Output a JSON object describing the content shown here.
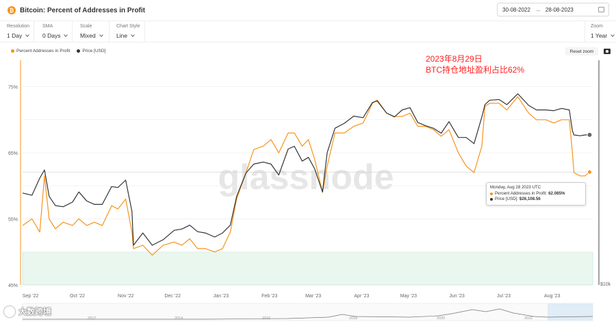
{
  "header": {
    "title": "Bitcoin: Percent of Addresses in Profit",
    "coin_symbol": "₿",
    "date_from": "30-08-2022",
    "date_to": "28-08-2023"
  },
  "controls": {
    "resolution": {
      "label": "Resolution",
      "value": "1 Day"
    },
    "sma": {
      "label": "SMA",
      "value": "0 Days"
    },
    "scale": {
      "label": "Scale",
      "value": "Mixed"
    },
    "chart_style": {
      "label": "Chart Style",
      "value": "Line"
    },
    "zoom": {
      "label": "Zoom",
      "value": "1 Year"
    }
  },
  "toolbar": {
    "reset_zoom": "Reset zoom"
  },
  "annotation": {
    "line1": "2023年8月29日",
    "line2": "BTC持仓地址盈利占比62%"
  },
  "chart_data": {
    "type": "line",
    "legend_position": "top-left",
    "x_tick_labels": [
      "Sep '22",
      "Oct '22",
      "Nov '22",
      "Dec '22",
      "Jan '23",
      "Feb '23",
      "Mar '23",
      "Apr '23",
      "May '23",
      "Jun '23",
      "Jul '23",
      "Aug '23"
    ],
    "y_left_ticks": [
      "75%",
      "65%",
      "55%",
      "45%"
    ],
    "y_right_label": "$10k",
    "ylim": [
      45,
      79
    ],
    "watermark": "glassnode",
    "highlight_band": {
      "from": 45,
      "to": 50
    },
    "series": [
      {
        "name": "Percent Addresses in Profit",
        "color": "#f7931a",
        "points": [
          [
            "2022-08-30",
            54
          ],
          [
            "2022-09-05",
            55
          ],
          [
            "2022-09-10",
            53
          ],
          [
            "2022-09-13",
            61.5
          ],
          [
            "2022-09-16",
            55
          ],
          [
            "2022-09-20",
            53.5
          ],
          [
            "2022-09-25",
            54.5
          ],
          [
            "2022-10-01",
            54
          ],
          [
            "2022-10-05",
            55
          ],
          [
            "2022-10-10",
            54
          ],
          [
            "2022-10-15",
            54.5
          ],
          [
            "2022-10-20",
            54
          ],
          [
            "2022-10-26",
            57
          ],
          [
            "2022-10-30",
            56.5
          ],
          [
            "2022-11-04",
            58
          ],
          [
            "2022-11-08",
            53
          ],
          [
            "2022-11-09",
            50.5
          ],
          [
            "2022-11-15",
            51
          ],
          [
            "2022-11-21",
            49.5
          ],
          [
            "2022-11-28",
            51
          ],
          [
            "2022-12-05",
            51.5
          ],
          [
            "2022-12-10",
            51
          ],
          [
            "2022-12-15",
            52
          ],
          [
            "2022-12-20",
            50.5
          ],
          [
            "2022-12-25",
            50.5
          ],
          [
            "2022-12-31",
            50
          ],
          [
            "2023-01-05",
            50.5
          ],
          [
            "2023-01-10",
            53
          ],
          [
            "2023-01-14",
            58
          ],
          [
            "2023-01-20",
            62
          ],
          [
            "2023-01-25",
            65.5
          ],
          [
            "2023-01-31",
            66
          ],
          [
            "2023-02-05",
            67
          ],
          [
            "2023-02-10",
            65
          ],
          [
            "2023-02-16",
            68
          ],
          [
            "2023-02-20",
            68
          ],
          [
            "2023-02-25",
            66
          ],
          [
            "2023-03-01",
            67
          ],
          [
            "2023-03-05",
            64
          ],
          [
            "2023-03-10",
            59
          ],
          [
            "2023-03-13",
            63
          ],
          [
            "2023-03-18",
            68
          ],
          [
            "2023-03-24",
            68
          ],
          [
            "2023-03-30",
            69
          ],
          [
            "2023-04-05",
            69.5
          ],
          [
            "2023-04-11",
            72.5
          ],
          [
            "2023-04-14",
            73
          ],
          [
            "2023-04-20",
            71
          ],
          [
            "2023-04-25",
            70.5
          ],
          [
            "2023-04-30",
            70.5
          ],
          [
            "2023-05-05",
            71
          ],
          [
            "2023-05-10",
            69
          ],
          [
            "2023-05-15",
            69
          ],
          [
            "2023-05-20",
            68.5
          ],
          [
            "2023-05-25",
            67.5
          ],
          [
            "2023-05-30",
            68.5
          ],
          [
            "2023-06-05",
            65
          ],
          [
            "2023-06-10",
            63
          ],
          [
            "2023-06-15",
            62
          ],
          [
            "2023-06-20",
            66
          ],
          [
            "2023-06-22",
            72
          ],
          [
            "2023-06-25",
            72.5
          ],
          [
            "2023-07-01",
            72.5
          ],
          [
            "2023-07-06",
            71.5
          ],
          [
            "2023-07-13",
            73.5
          ],
          [
            "2023-07-20",
            71
          ],
          [
            "2023-07-25",
            70
          ],
          [
            "2023-07-31",
            70
          ],
          [
            "2023-08-05",
            69.5
          ],
          [
            "2023-08-10",
            70
          ],
          [
            "2023-08-15",
            70
          ],
          [
            "2023-08-17",
            65
          ],
          [
            "2023-08-18",
            62
          ],
          [
            "2023-08-22",
            61.5
          ],
          [
            "2023-08-25",
            61.5
          ],
          [
            "2023-08-28",
            62.085
          ]
        ]
      },
      {
        "name": "Price [USD]",
        "color": "#333333",
        "points": [
          [
            "2022-08-30",
            20100
          ],
          [
            "2022-09-05",
            19900
          ],
          [
            "2022-09-10",
            21500
          ],
          [
            "2022-09-13",
            22300
          ],
          [
            "2022-09-16",
            19800
          ],
          [
            "2022-09-20",
            19000
          ],
          [
            "2022-09-25",
            18900
          ],
          [
            "2022-10-01",
            19300
          ],
          [
            "2022-10-05",
            20200
          ],
          [
            "2022-10-10",
            19400
          ],
          [
            "2022-10-15",
            19100
          ],
          [
            "2022-10-20",
            19100
          ],
          [
            "2022-10-26",
            20700
          ],
          [
            "2022-10-30",
            20600
          ],
          [
            "2022-11-04",
            21300
          ],
          [
            "2022-11-08",
            18500
          ],
          [
            "2022-11-09",
            15900
          ],
          [
            "2022-11-15",
            16800
          ],
          [
            "2022-11-21",
            15900
          ],
          [
            "2022-11-28",
            16300
          ],
          [
            "2022-12-05",
            17000
          ],
          [
            "2022-12-10",
            17100
          ],
          [
            "2022-12-15",
            17400
          ],
          [
            "2022-12-20",
            16900
          ],
          [
            "2022-12-25",
            16800
          ],
          [
            "2022-12-31",
            16500
          ],
          [
            "2023-01-05",
            16800
          ],
          [
            "2023-01-10",
            17400
          ],
          [
            "2023-01-14",
            19800
          ],
          [
            "2023-01-20",
            22000
          ],
          [
            "2023-01-25",
            22900
          ],
          [
            "2023-01-31",
            23100
          ],
          [
            "2023-02-05",
            22900
          ],
          [
            "2023-02-10",
            21800
          ],
          [
            "2023-02-16",
            24500
          ],
          [
            "2023-02-20",
            24800
          ],
          [
            "2023-02-25",
            23200
          ],
          [
            "2023-03-01",
            23600
          ],
          [
            "2023-03-05",
            22400
          ],
          [
            "2023-03-10",
            20200
          ],
          [
            "2023-03-13",
            24100
          ],
          [
            "2023-03-18",
            26900
          ],
          [
            "2023-03-24",
            27500
          ],
          [
            "2023-03-30",
            28400
          ],
          [
            "2023-04-05",
            28200
          ],
          [
            "2023-04-11",
            30200
          ],
          [
            "2023-04-14",
            30400
          ],
          [
            "2023-04-20",
            28800
          ],
          [
            "2023-04-25",
            28300
          ],
          [
            "2023-04-30",
            29200
          ],
          [
            "2023-05-05",
            29500
          ],
          [
            "2023-05-10",
            27600
          ],
          [
            "2023-05-15",
            27200
          ],
          [
            "2023-05-20",
            26900
          ],
          [
            "2023-05-25",
            26300
          ],
          [
            "2023-05-30",
            27700
          ],
          [
            "2023-06-05",
            25800
          ],
          [
            "2023-06-10",
            25800
          ],
          [
            "2023-06-15",
            25100
          ],
          [
            "2023-06-20",
            28300
          ],
          [
            "2023-06-22",
            29900
          ],
          [
            "2023-06-25",
            30500
          ],
          [
            "2023-07-01",
            30600
          ],
          [
            "2023-07-06",
            29900
          ],
          [
            "2023-07-13",
            31400
          ],
          [
            "2023-07-20",
            29800
          ],
          [
            "2023-07-25",
            29200
          ],
          [
            "2023-07-31",
            29200
          ],
          [
            "2023-08-05",
            29100
          ],
          [
            "2023-08-10",
            29400
          ],
          [
            "2023-08-15",
            29200
          ],
          [
            "2023-08-17",
            26600
          ],
          [
            "2023-08-18",
            26100
          ],
          [
            "2023-08-22",
            26000
          ],
          [
            "2023-08-25",
            26100
          ],
          [
            "2023-08-28",
            26108.56
          ]
        ]
      }
    ],
    "tooltip": {
      "date": "Monday, Aug 28 2023 UTC",
      "percent_label": "Percent Addresses in Profit:",
      "percent_value": "62.085%",
      "price_label": "Price [USD]:",
      "price_value": "$26,108.56"
    },
    "navigator": {
      "labels": [
        "2012",
        "2014",
        "2016",
        "2018",
        "2020",
        "2022"
      ]
    }
  },
  "watermark_brand": "大数跨境"
}
